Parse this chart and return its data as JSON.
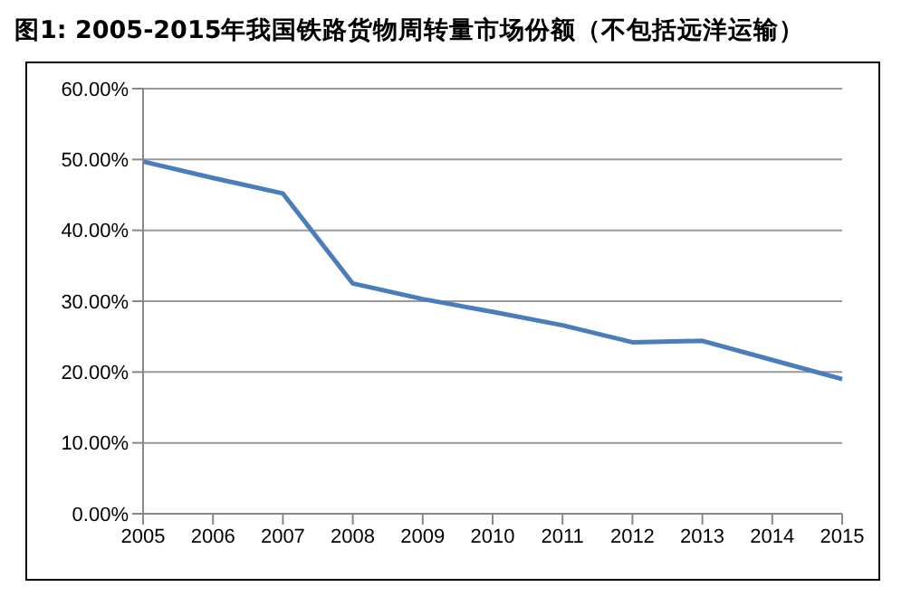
{
  "chart_data": {
    "type": "line",
    "title": "图1: 2005-2015年我国铁路货物周转量市场份额（不包括远洋运输）",
    "categories": [
      "2005",
      "2006",
      "2007",
      "2008",
      "2009",
      "2010",
      "2011",
      "2012",
      "2013",
      "2014",
      "2015"
    ],
    "series": [
      {
        "color": "#4a7ebb",
        "values": [
          49.7,
          47.4,
          45.2,
          32.5,
          30.3,
          28.5,
          26.6,
          24.2,
          24.4,
          21.7,
          19.0
        ]
      }
    ],
    "ylim": [
      0,
      60
    ],
    "yticks": [
      {
        "value": 0,
        "label": "0.00%"
      },
      {
        "value": 10,
        "label": "10.00%"
      },
      {
        "value": 20,
        "label": "20.00%"
      },
      {
        "value": 30,
        "label": "30.00%"
      },
      {
        "value": 40,
        "label": "40.00%"
      },
      {
        "value": 50,
        "label": "50.00%"
      },
      {
        "value": 60,
        "label": "60.00%"
      }
    ],
    "grid": "y",
    "legend": false,
    "marker": "none",
    "line_style": "solid"
  }
}
